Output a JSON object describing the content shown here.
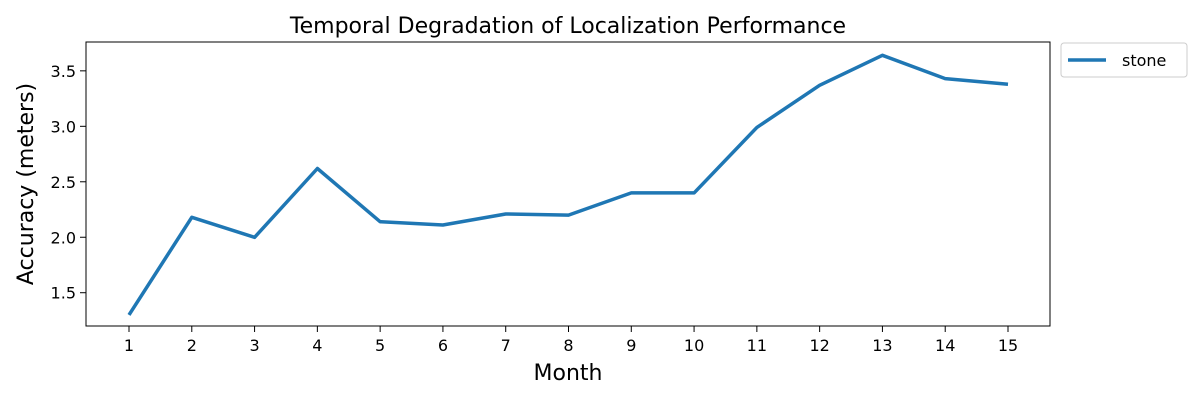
{
  "chart_data": {
    "type": "line",
    "title": "Temporal Degradation of Localization Performance",
    "xlabel": "Month",
    "ylabel": "Accuracy (meters)",
    "categories": [
      "1",
      "2",
      "3",
      "4",
      "5",
      "6",
      "7",
      "8",
      "9",
      "10",
      "11",
      "12",
      "13",
      "14",
      "15"
    ],
    "series": [
      {
        "name": "stone",
        "color": "#1f77b4",
        "values": [
          1.3,
          2.18,
          2.0,
          2.62,
          2.14,
          2.11,
          2.21,
          2.2,
          2.4,
          2.4,
          2.99,
          3.37,
          3.64,
          3.43,
          3.38
        ]
      }
    ],
    "ylim": [
      1.2,
      3.76
    ],
    "yticks": [
      1.5,
      2.0,
      2.5,
      3.0,
      3.5
    ],
    "ytick_labels": [
      "1.5",
      "2.0",
      "2.5",
      "3.0",
      "3.5"
    ],
    "grid": false,
    "legend_position": "outside-top-right"
  }
}
